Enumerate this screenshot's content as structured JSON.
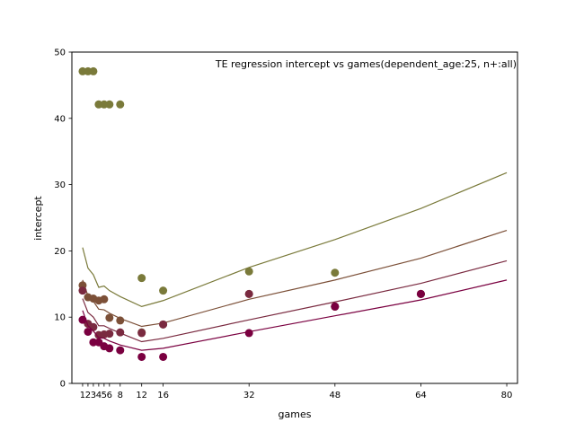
{
  "chart_data": {
    "type": "scatter",
    "title": "TE regression intercept vs games(dependent_age:25, n+:all)",
    "xlabel": "games",
    "ylabel": "intercept",
    "xlim": [
      -1,
      82
    ],
    "ylim": [
      0,
      50
    ],
    "xticks": [
      1,
      2,
      3,
      4,
      5,
      6,
      8,
      12,
      16,
      32,
      48,
      64,
      80
    ],
    "yticks": [
      0,
      10,
      20,
      30,
      40,
      50
    ],
    "grid": false,
    "series": [
      {
        "color": "#7a7a3a",
        "points": {
          "x": [
            1,
            2,
            3,
            4,
            5,
            6,
            8,
            12,
            16,
            32,
            48,
            64
          ],
          "y": [
            47.1,
            47.1,
            47.1,
            42.1,
            42.1,
            42.1,
            42.1,
            15.9,
            14.0,
            16.9,
            16.7,
            13.5
          ]
        },
        "line": {
          "x": [
            1,
            2,
            3,
            4,
            5,
            6,
            8,
            12,
            16,
            32,
            48,
            64,
            80
          ],
          "y": [
            20.5,
            17.4,
            16.4,
            14.5,
            14.7,
            14.0,
            13.1,
            11.6,
            12.5,
            17.5,
            21.7,
            26.4,
            31.8
          ]
        }
      },
      {
        "color": "#7c5038",
        "points": {
          "x": [
            1,
            2,
            3,
            4,
            5,
            6,
            8,
            12,
            16,
            32,
            48,
            64
          ],
          "y": [
            14.8,
            13.0,
            12.8,
            12.5,
            12.7,
            9.9,
            9.5,
            7.7,
            8.9,
            13.5,
            11.6,
            13.5
          ]
        },
        "line": {
          "x": [
            1,
            2,
            3,
            4,
            5,
            6,
            8,
            12,
            16,
            32,
            48,
            64,
            80
          ],
          "y": [
            15.6,
            13.2,
            12.4,
            11.2,
            11.1,
            10.6,
            9.8,
            8.6,
            9.1,
            12.7,
            15.6,
            18.9,
            23.1
          ]
        }
      },
      {
        "color": "#7a2a40",
        "points": {
          "x": [
            1,
            2,
            3,
            4,
            5,
            6,
            8,
            12,
            16,
            32,
            48,
            64
          ],
          "y": [
            14.0,
            9.0,
            8.5,
            7.3,
            7.4,
            7.5,
            7.7,
            7.6,
            8.9,
            13.5,
            11.6,
            13.5
          ]
        },
        "line": {
          "x": [
            1,
            2,
            3,
            4,
            5,
            6,
            8,
            12,
            16,
            32,
            48,
            64,
            80
          ],
          "y": [
            12.8,
            10.7,
            10.0,
            8.7,
            8.7,
            8.3,
            7.6,
            6.3,
            6.8,
            9.6,
            12.3,
            15.1,
            18.5
          ]
        }
      },
      {
        "color": "#7a0040",
        "points": {
          "x": [
            1,
            2,
            3,
            4,
            5,
            6,
            8,
            12,
            16,
            32,
            48,
            64
          ],
          "y": [
            9.6,
            7.8,
            6.2,
            6.2,
            5.6,
            5.3,
            5.0,
            4.0,
            4.0,
            7.6,
            11.6,
            13.5
          ]
        },
        "line": {
          "x": [
            1,
            2,
            3,
            4,
            5,
            6,
            8,
            12,
            16,
            32,
            48,
            64,
            80
          ],
          "y": [
            11.0,
            8.7,
            7.9,
            6.9,
            6.8,
            6.4,
            5.8,
            5.0,
            5.3,
            7.8,
            10.2,
            12.6,
            15.6
          ]
        }
      }
    ]
  }
}
